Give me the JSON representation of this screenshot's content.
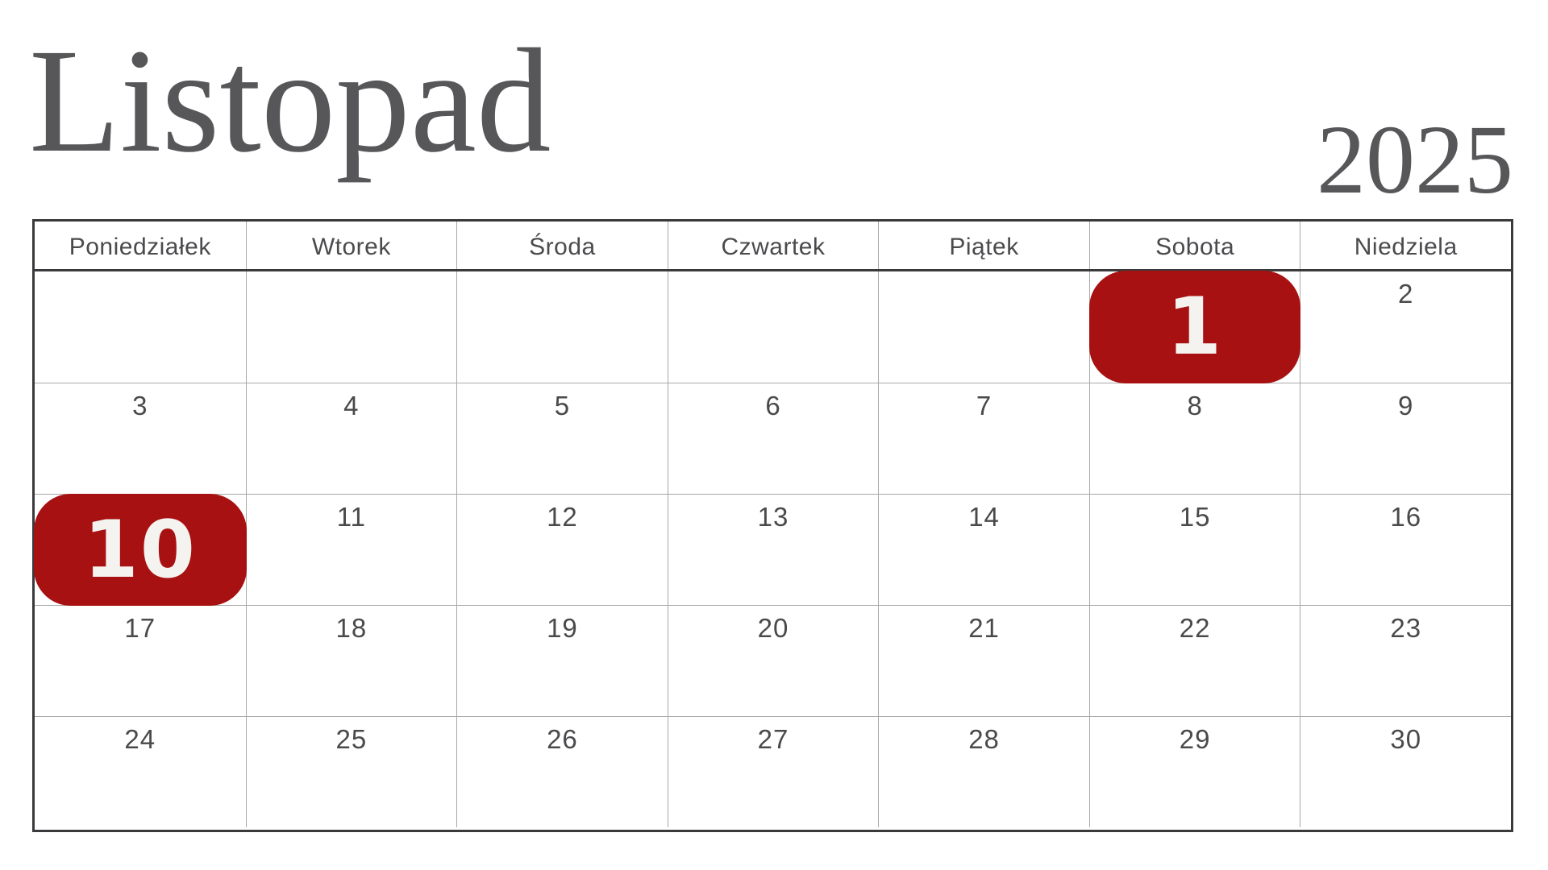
{
  "header": {
    "month_title": "Listopad",
    "year": "2025"
  },
  "colors": {
    "accent_red": "#a81111",
    "title_text": "#57575a",
    "body_text": "#4a4a4d",
    "border_dark": "#3a3a3c",
    "border_light": "#a8a8a8",
    "pill_text": "#f5f3ef"
  },
  "calendar": {
    "weekday_headers": [
      "Poniedziałek",
      "Wtorek",
      "Środa",
      "Czwartek",
      "Piątek",
      "Sobota",
      "Niedziela"
    ],
    "weeks": [
      [
        "",
        "",
        "",
        "",
        "",
        "1",
        "2"
      ],
      [
        "3",
        "4",
        "5",
        "6",
        "7",
        "8",
        "9"
      ],
      [
        "10",
        "11",
        "12",
        "13",
        "14",
        "15",
        "16"
      ],
      [
        "17",
        "18",
        "19",
        "20",
        "21",
        "22",
        "23"
      ],
      [
        "24",
        "25",
        "26",
        "27",
        "28",
        "29",
        "30"
      ]
    ],
    "highlighted_days": [
      "1",
      "10"
    ]
  }
}
